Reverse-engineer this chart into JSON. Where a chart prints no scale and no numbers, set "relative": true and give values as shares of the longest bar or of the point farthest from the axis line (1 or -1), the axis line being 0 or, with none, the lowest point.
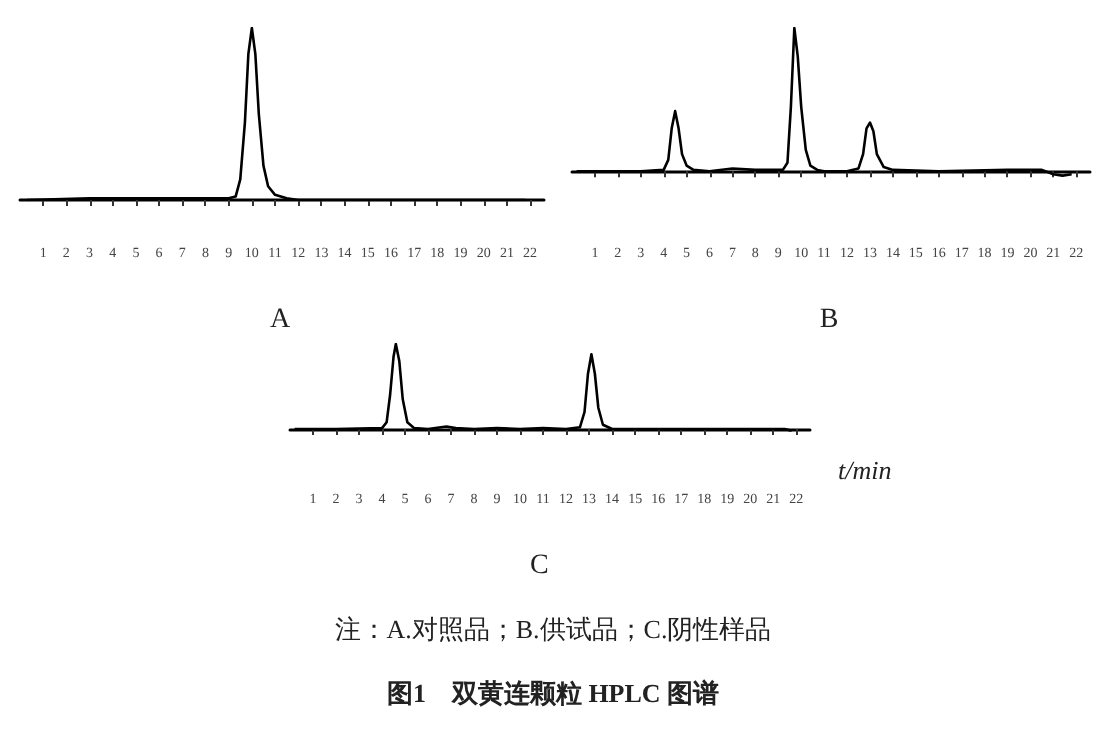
{
  "chart_data": [
    {
      "type": "line",
      "title": "A",
      "relative": true,
      "marker": "none",
      "color": "#000000",
      "xlim": [
        0,
        22.6
      ],
      "xticks": [
        1,
        2,
        3,
        4,
        5,
        6,
        7,
        8,
        9,
        10,
        11,
        12,
        13,
        14,
        15,
        16,
        17,
        18,
        19,
        20,
        21,
        22
      ],
      "x": [
        0.3,
        3,
        6,
        9,
        9.3,
        9.5,
        9.7,
        9.85,
        10,
        10.15,
        10.3,
        10.5,
        10.7,
        11,
        11.5,
        12,
        15,
        18,
        21.8
      ],
      "values": [
        0,
        0.01,
        0.01,
        0.01,
        0.02,
        0.12,
        0.45,
        0.85,
        1,
        0.85,
        0.5,
        0.2,
        0.08,
        0.03,
        0.01,
        0,
        0,
        0,
        0
      ]
    },
    {
      "type": "line",
      "title": "B",
      "relative": true,
      "marker": "none",
      "color": "#000000",
      "xlim": [
        0,
        22.6
      ],
      "xticks": [
        1,
        2,
        3,
        4,
        5,
        6,
        7,
        8,
        9,
        10,
        11,
        12,
        13,
        14,
        15,
        16,
        17,
        18,
        19,
        20,
        21,
        22
      ],
      "x": [
        0.2,
        3,
        4,
        4.2,
        4.35,
        4.5,
        4.65,
        4.8,
        5,
        5.3,
        6,
        7,
        8,
        9.2,
        9.4,
        9.55,
        9.7,
        9.85,
        10,
        10.2,
        10.4,
        10.7,
        11,
        12,
        12.5,
        12.7,
        12.85,
        13,
        13.15,
        13.3,
        13.6,
        14,
        16,
        19,
        20.5,
        21,
        21.4,
        21.8
      ],
      "values": [
        0,
        0,
        0.01,
        0.08,
        0.3,
        0.42,
        0.3,
        0.12,
        0.04,
        0.01,
        0,
        0.02,
        0.01,
        0.01,
        0.06,
        0.45,
        1,
        0.8,
        0.45,
        0.15,
        0.04,
        0.01,
        0,
        0,
        0.02,
        0.12,
        0.3,
        0.34,
        0.28,
        0.12,
        0.03,
        0.01,
        0,
        0.01,
        0.01,
        -0.02,
        -0.03,
        -0.02
      ]
    },
    {
      "type": "line",
      "title": "C",
      "xlabel": "t/min",
      "relative": true,
      "marker": "none",
      "color": "#000000",
      "xlim": [
        0,
        22.6
      ],
      "xticks": [
        1,
        2,
        3,
        4,
        5,
        6,
        7,
        8,
        9,
        10,
        11,
        12,
        13,
        14,
        15,
        16,
        17,
        18,
        19,
        20,
        21,
        22
      ],
      "x": [
        0.2,
        2,
        4,
        4.2,
        4.35,
        4.5,
        4.6,
        4.75,
        4.9,
        5.1,
        5.4,
        6,
        6.8,
        7.2,
        8,
        9,
        10,
        11,
        12,
        12.6,
        12.8,
        12.95,
        13.1,
        13.25,
        13.4,
        13.6,
        14,
        16,
        19,
        21.5,
        21.8
      ],
      "values": [
        0,
        0,
        0.01,
        0.08,
        0.4,
        0.85,
        1,
        0.8,
        0.35,
        0.08,
        0.01,
        0,
        0.03,
        0.01,
        0,
        0.01,
        0,
        0.01,
        0,
        0.02,
        0.2,
        0.65,
        0.88,
        0.65,
        0.25,
        0.05,
        0,
        0,
        0,
        0,
        -0.02
      ],
      "annotations": [
        "注：A.对照品；B.供试品；C.阴性样品",
        "图1　双黄连颗粒 HPLC 图谱"
      ]
    }
  ]
}
